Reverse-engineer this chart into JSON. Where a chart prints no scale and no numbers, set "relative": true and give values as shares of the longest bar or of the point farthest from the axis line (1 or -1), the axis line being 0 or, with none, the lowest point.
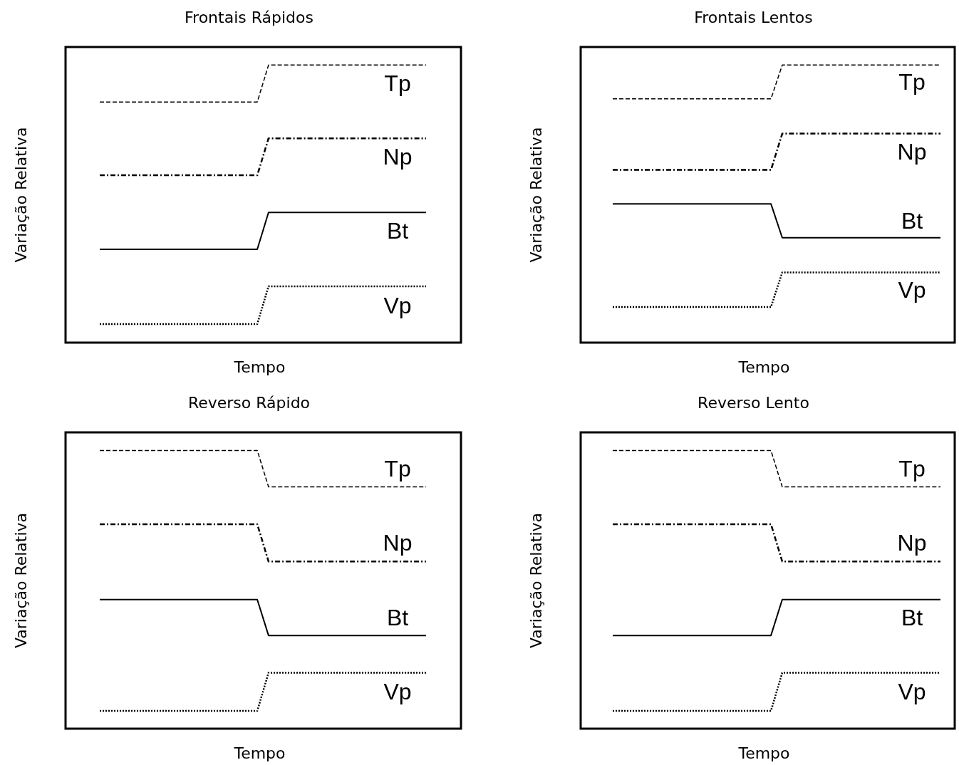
{
  "chart_data": [
    {
      "type": "line",
      "title": "Frontais Rápidos",
      "xlabel": "Tempo",
      "ylabel": "Variação Relativa",
      "relative": true,
      "categories": [
        null,
        null,
        null,
        null,
        null,
        null,
        null,
        null,
        null,
        null,
        null,
        null,
        null,
        null,
        null,
        null,
        null,
        null,
        null,
        null,
        null,
        null,
        null,
        null,
        null,
        null,
        null,
        null,
        null,
        null
      ],
      "series": [
        {
          "name": "Tp",
          "color": "#000000",
          "line_style": "dashed",
          "values": [
            0.867,
            0.867,
            0.867,
            0.867,
            0.867,
            0.867,
            0.867,
            0.867,
            0.867,
            0.867,
            0.867,
            0.867,
            0.867,
            0.867,
            0.867,
            1,
            1,
            1,
            1,
            1,
            1,
            1,
            1,
            1,
            1,
            1,
            1,
            1,
            1,
            1
          ]
        },
        {
          "name": "Np",
          "color": "#000000",
          "line_style": "dashdot",
          "values": [
            0.603,
            0.603,
            0.603,
            0.603,
            0.603,
            0.603,
            0.603,
            0.603,
            0.603,
            0.603,
            0.603,
            0.603,
            0.603,
            0.603,
            0.603,
            0.736,
            0.736,
            0.736,
            0.736,
            0.736,
            0.736,
            0.736,
            0.736,
            0.736,
            0.736,
            0.736,
            0.736,
            0.736,
            0.736,
            0.736
          ]
        },
        {
          "name": "Bt",
          "color": "#000000",
          "line_style": "solid",
          "values": [
            0.336,
            0.336,
            0.336,
            0.336,
            0.336,
            0.336,
            0.336,
            0.336,
            0.336,
            0.336,
            0.336,
            0.336,
            0.336,
            0.336,
            0.336,
            0.469,
            0.469,
            0.469,
            0.469,
            0.469,
            0.469,
            0.469,
            0.469,
            0.469,
            0.469,
            0.469,
            0.469,
            0.469,
            0.469,
            0.469
          ]
        },
        {
          "name": "Vp",
          "color": "#000000",
          "line_style": "dotted",
          "values": [
            0.067,
            0.067,
            0.067,
            0.067,
            0.067,
            0.067,
            0.067,
            0.067,
            0.067,
            0.067,
            0.067,
            0.067,
            0.067,
            0.067,
            0.067,
            0.203,
            0.203,
            0.203,
            0.203,
            0.203,
            0.203,
            0.203,
            0.203,
            0.203,
            0.203,
            0.203,
            0.203,
            0.203,
            0.203,
            0.203
          ]
        }
      ]
    },
    {
      "type": "line",
      "title": "Frontais Lentos",
      "xlabel": "Tempo",
      "ylabel": "Variação Relativa",
      "relative": true,
      "categories": [
        null,
        null,
        null,
        null,
        null,
        null,
        null,
        null,
        null,
        null,
        null,
        null,
        null,
        null,
        null,
        null,
        null,
        null,
        null,
        null,
        null,
        null,
        null,
        null,
        null,
        null,
        null,
        null,
        null,
        null
      ],
      "series": [
        {
          "name": "Tp",
          "color": "#000000",
          "line_style": "dashed",
          "values": [
            0.878,
            0.878,
            0.878,
            0.878,
            0.878,
            0.878,
            0.878,
            0.878,
            0.878,
            0.878,
            0.878,
            0.878,
            0.878,
            0.878,
            0.878,
            1,
            1,
            1,
            1,
            1,
            1,
            1,
            1,
            1,
            1,
            1,
            1,
            1,
            1,
            1
          ]
        },
        {
          "name": "Np",
          "color": "#000000",
          "line_style": "dashdot",
          "values": [
            0.622,
            0.622,
            0.622,
            0.622,
            0.622,
            0.622,
            0.622,
            0.622,
            0.622,
            0.622,
            0.622,
            0.622,
            0.622,
            0.622,
            0.622,
            0.753,
            0.753,
            0.753,
            0.753,
            0.753,
            0.753,
            0.753,
            0.753,
            0.753,
            0.753,
            0.753,
            0.753,
            0.753,
            0.753,
            0.753
          ]
        },
        {
          "name": "Bt",
          "color": "#000000",
          "line_style": "solid",
          "values": [
            0.5,
            0.5,
            0.5,
            0.5,
            0.5,
            0.5,
            0.5,
            0.5,
            0.5,
            0.5,
            0.5,
            0.5,
            0.5,
            0.5,
            0.5,
            0.378,
            0.378,
            0.378,
            0.378,
            0.378,
            0.378,
            0.378,
            0.378,
            0.378,
            0.378,
            0.378,
            0.378,
            0.378,
            0.378,
            0.378
          ]
        },
        {
          "name": "Vp",
          "color": "#000000",
          "line_style": "dotted",
          "values": [
            0.128,
            0.128,
            0.128,
            0.128,
            0.128,
            0.128,
            0.128,
            0.128,
            0.128,
            0.128,
            0.128,
            0.128,
            0.128,
            0.128,
            0.128,
            0.253,
            0.253,
            0.253,
            0.253,
            0.253,
            0.253,
            0.253,
            0.253,
            0.253,
            0.253,
            0.253,
            0.253,
            0.253,
            0.253,
            0.253
          ]
        }
      ]
    },
    {
      "type": "line",
      "title": "Reverso Rápido",
      "xlabel": "Tempo",
      "ylabel": "Variação Relativa",
      "relative": true,
      "categories": [
        null,
        null,
        null,
        null,
        null,
        null,
        null,
        null,
        null,
        null,
        null,
        null,
        null,
        null,
        null,
        null,
        null,
        null,
        null,
        null,
        null,
        null,
        null,
        null,
        null,
        null,
        null,
        null,
        null,
        null
      ],
      "series": [
        {
          "name": "Tp",
          "color": "#000000",
          "line_style": "dashed",
          "values": [
            1,
            1,
            1,
            1,
            1,
            1,
            1,
            1,
            1,
            1,
            1,
            1,
            1,
            1,
            1,
            0.869,
            0.869,
            0.869,
            0.869,
            0.869,
            0.869,
            0.869,
            0.869,
            0.869,
            0.869,
            0.869,
            0.869,
            0.869,
            0.869,
            0.869
          ]
        },
        {
          "name": "Np",
          "color": "#000000",
          "line_style": "dashdot",
          "values": [
            0.735,
            0.735,
            0.735,
            0.735,
            0.735,
            0.735,
            0.735,
            0.735,
            0.735,
            0.735,
            0.735,
            0.735,
            0.735,
            0.735,
            0.735,
            0.601,
            0.601,
            0.601,
            0.601,
            0.601,
            0.601,
            0.601,
            0.601,
            0.601,
            0.601,
            0.601,
            0.601,
            0.601,
            0.601,
            0.601
          ]
        },
        {
          "name": "Bt",
          "color": "#000000",
          "line_style": "solid",
          "values": [
            0.464,
            0.464,
            0.464,
            0.464,
            0.464,
            0.464,
            0.464,
            0.464,
            0.464,
            0.464,
            0.464,
            0.464,
            0.464,
            0.464,
            0.464,
            0.335,
            0.335,
            0.335,
            0.335,
            0.335,
            0.335,
            0.335,
            0.335,
            0.335,
            0.335,
            0.335,
            0.335,
            0.335,
            0.335,
            0.335
          ]
        },
        {
          "name": "Vp",
          "color": "#000000",
          "line_style": "dotted",
          "values": [
            0.064,
            0.064,
            0.064,
            0.064,
            0.064,
            0.064,
            0.064,
            0.064,
            0.064,
            0.064,
            0.064,
            0.064,
            0.064,
            0.064,
            0.064,
            0.201,
            0.201,
            0.201,
            0.201,
            0.201,
            0.201,
            0.201,
            0.201,
            0.201,
            0.201,
            0.201,
            0.201,
            0.201,
            0.201,
            0.201
          ]
        }
      ]
    },
    {
      "type": "line",
      "title": "Reverso Lento",
      "xlabel": "Tempo",
      "ylabel": "Variação Relativa",
      "relative": true,
      "categories": [
        null,
        null,
        null,
        null,
        null,
        null,
        null,
        null,
        null,
        null,
        null,
        null,
        null,
        null,
        null,
        null,
        null,
        null,
        null,
        null,
        null,
        null,
        null,
        null,
        null,
        null,
        null,
        null,
        null,
        null
      ],
      "series": [
        {
          "name": "Tp",
          "color": "#000000",
          "line_style": "dashed",
          "values": [
            1,
            1,
            1,
            1,
            1,
            1,
            1,
            1,
            1,
            1,
            1,
            1,
            1,
            1,
            1,
            0.869,
            0.869,
            0.869,
            0.869,
            0.869,
            0.869,
            0.869,
            0.869,
            0.869,
            0.869,
            0.869,
            0.869,
            0.869,
            0.869,
            0.869
          ]
        },
        {
          "name": "Np",
          "color": "#000000",
          "line_style": "dashdot",
          "values": [
            0.735,
            0.735,
            0.735,
            0.735,
            0.735,
            0.735,
            0.735,
            0.735,
            0.735,
            0.735,
            0.735,
            0.735,
            0.735,
            0.735,
            0.735,
            0.601,
            0.601,
            0.601,
            0.601,
            0.601,
            0.601,
            0.601,
            0.601,
            0.601,
            0.601,
            0.601,
            0.601,
            0.601,
            0.601,
            0.601
          ]
        },
        {
          "name": "Bt",
          "color": "#000000",
          "line_style": "solid",
          "values": [
            0.335,
            0.335,
            0.335,
            0.335,
            0.335,
            0.335,
            0.335,
            0.335,
            0.335,
            0.335,
            0.335,
            0.335,
            0.335,
            0.335,
            0.335,
            0.464,
            0.464,
            0.464,
            0.464,
            0.464,
            0.464,
            0.464,
            0.464,
            0.464,
            0.464,
            0.464,
            0.464,
            0.464,
            0.464,
            0.464
          ]
        },
        {
          "name": "Vp",
          "color": "#000000",
          "line_style": "dotted",
          "values": [
            0.064,
            0.064,
            0.064,
            0.064,
            0.064,
            0.064,
            0.064,
            0.064,
            0.064,
            0.064,
            0.064,
            0.064,
            0.064,
            0.064,
            0.064,
            0.201,
            0.201,
            0.201,
            0.201,
            0.201,
            0.201,
            0.201,
            0.201,
            0.201,
            0.201,
            0.201,
            0.201,
            0.201,
            0.201,
            0.201
          ]
        }
      ]
    }
  ]
}
